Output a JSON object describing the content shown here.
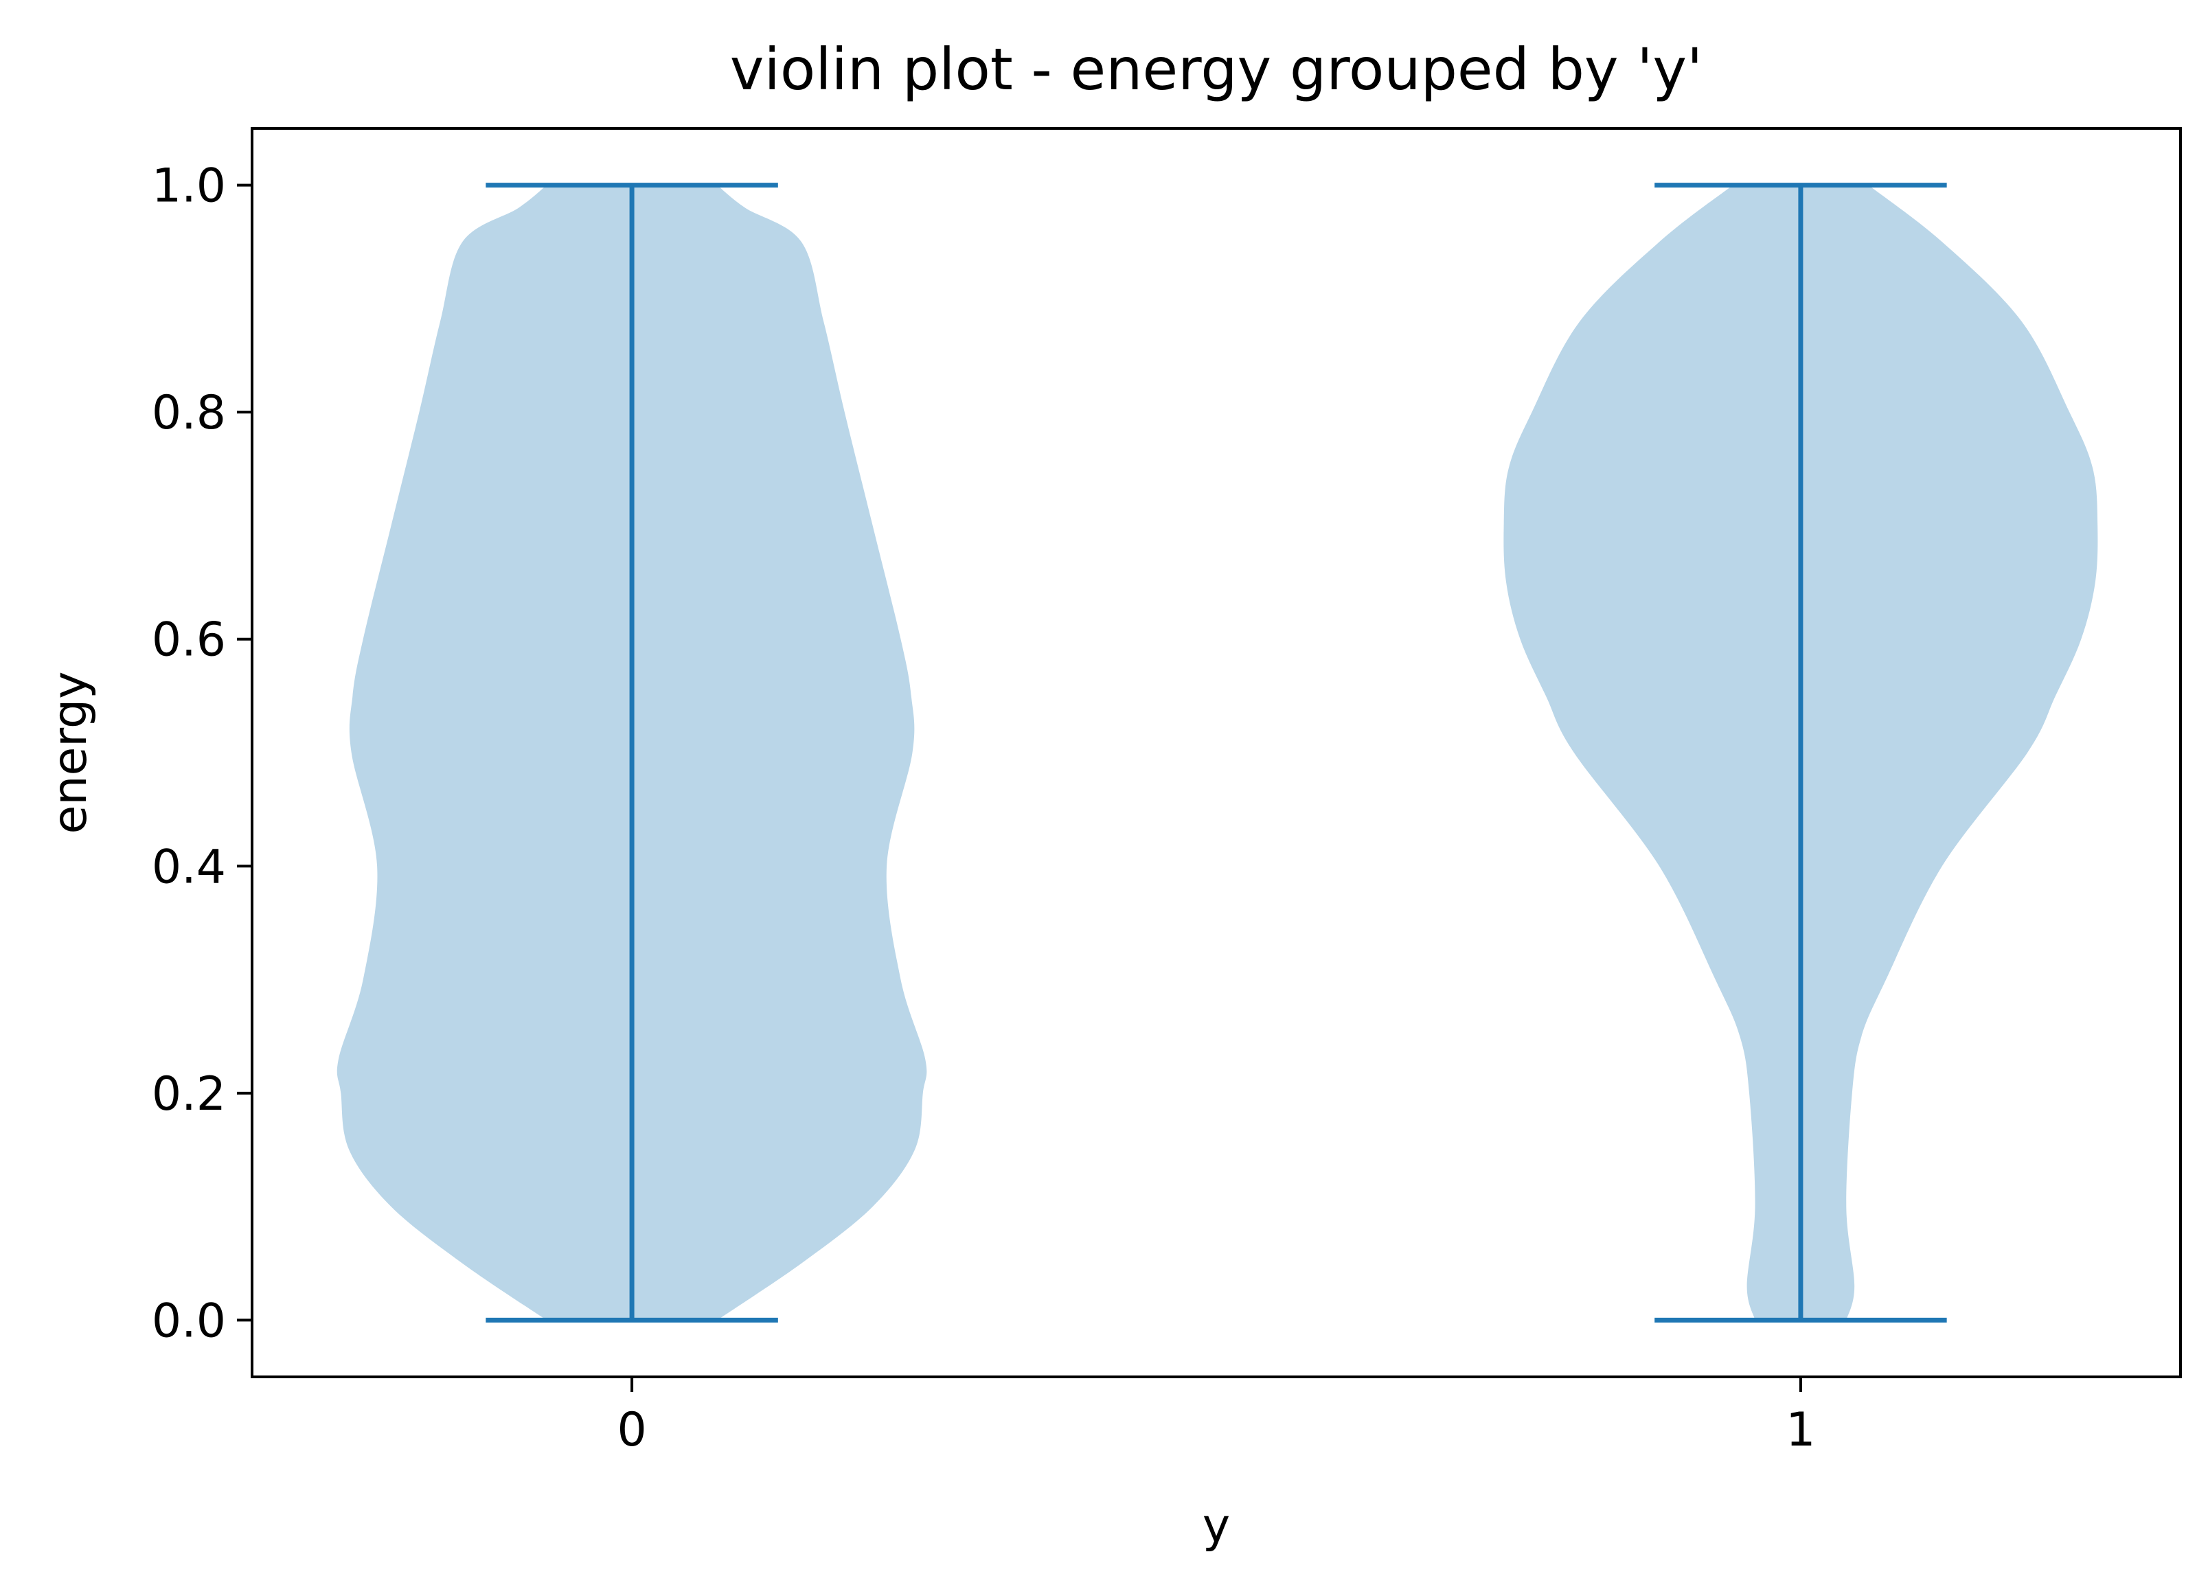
{
  "chart_data": {
    "type": "violin",
    "title": "violin plot - energy grouped by 'y'",
    "xlabel": "y",
    "ylabel": "energy",
    "ylim": [
      -0.05,
      1.05
    ],
    "y_ticks": [
      "0.0",
      "0.2",
      "0.4",
      "0.6",
      "0.8",
      "1.0"
    ],
    "categories": [
      "0",
      "1"
    ],
    "grid": false,
    "colors": {
      "body": "#bad6e8",
      "lines": "#1f77b4"
    },
    "violins": [
      {
        "category": "0",
        "min": 0.0,
        "max": 1.0,
        "profile": [
          [
            0.0,
            0.073
          ],
          [
            0.05,
            0.145
          ],
          [
            0.1,
            0.206
          ],
          [
            0.15,
            0.242
          ],
          [
            0.2,
            0.249
          ],
          [
            0.23,
            0.251
          ],
          [
            0.3,
            0.23
          ],
          [
            0.4,
            0.218
          ],
          [
            0.5,
            0.24
          ],
          [
            0.55,
            0.239
          ],
          [
            0.6,
            0.23
          ],
          [
            0.7,
            0.206
          ],
          [
            0.8,
            0.182
          ],
          [
            0.88,
            0.164
          ],
          [
            0.95,
            0.145
          ],
          [
            0.98,
            0.097
          ],
          [
            1.0,
            0.073
          ]
        ]
      },
      {
        "category": "1",
        "min": 0.0,
        "max": 1.0,
        "profile": [
          [
            0.0,
            0.039
          ],
          [
            0.03,
            0.046
          ],
          [
            0.1,
            0.039
          ],
          [
            0.2,
            0.044
          ],
          [
            0.25,
            0.052
          ],
          [
            0.3,
            0.073
          ],
          [
            0.4,
            0.121
          ],
          [
            0.5,
            0.194
          ],
          [
            0.55,
            0.218
          ],
          [
            0.6,
            0.24
          ],
          [
            0.65,
            0.252
          ],
          [
            0.7,
            0.254
          ],
          [
            0.75,
            0.25
          ],
          [
            0.8,
            0.23
          ],
          [
            0.88,
            0.189
          ],
          [
            0.95,
            0.121
          ],
          [
            1.0,
            0.058
          ]
        ]
      }
    ]
  }
}
